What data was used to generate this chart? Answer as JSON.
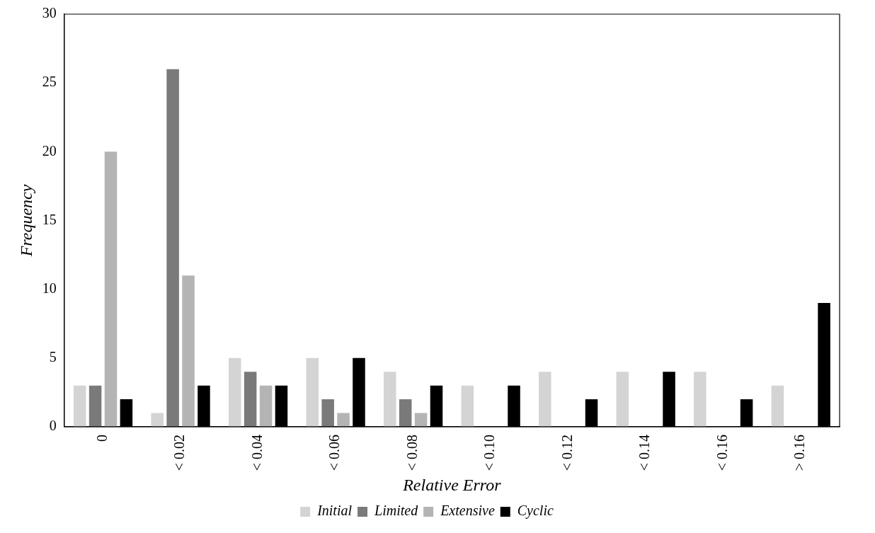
{
  "chart_data": {
    "type": "bar",
    "xlabel": "Relative Error",
    "ylabel": "Frequency",
    "categories": [
      "0",
      "< 0.02",
      "< 0.04",
      "< 0.06",
      "< 0.08",
      "< 0.10",
      "< 0.12",
      "< 0.14",
      "< 0.16",
      "> 0.16"
    ],
    "series": [
      {
        "name": "Initial",
        "color": "#d4d4d4",
        "values": [
          3,
          1,
          5,
          5,
          4,
          3,
          4,
          4,
          4,
          3
        ]
      },
      {
        "name": "Limited",
        "color": "#7a7a7a",
        "values": [
          3,
          26,
          4,
          2,
          2,
          0,
          0,
          0,
          0,
          0
        ]
      },
      {
        "name": "Extensive",
        "color": "#b4b4b4",
        "values": [
          20,
          11,
          3,
          1,
          1,
          0,
          0,
          0,
          0,
          0
        ]
      },
      {
        "name": "Cyclic",
        "color": "#000000",
        "values": [
          2,
          3,
          3,
          5,
          3,
          3,
          2,
          4,
          2,
          9
        ]
      }
    ],
    "ylim": [
      0,
      30
    ],
    "yticks": [
      0,
      5,
      10,
      15,
      20,
      25,
      30
    ],
    "grid": false,
    "legend": "bottom"
  }
}
